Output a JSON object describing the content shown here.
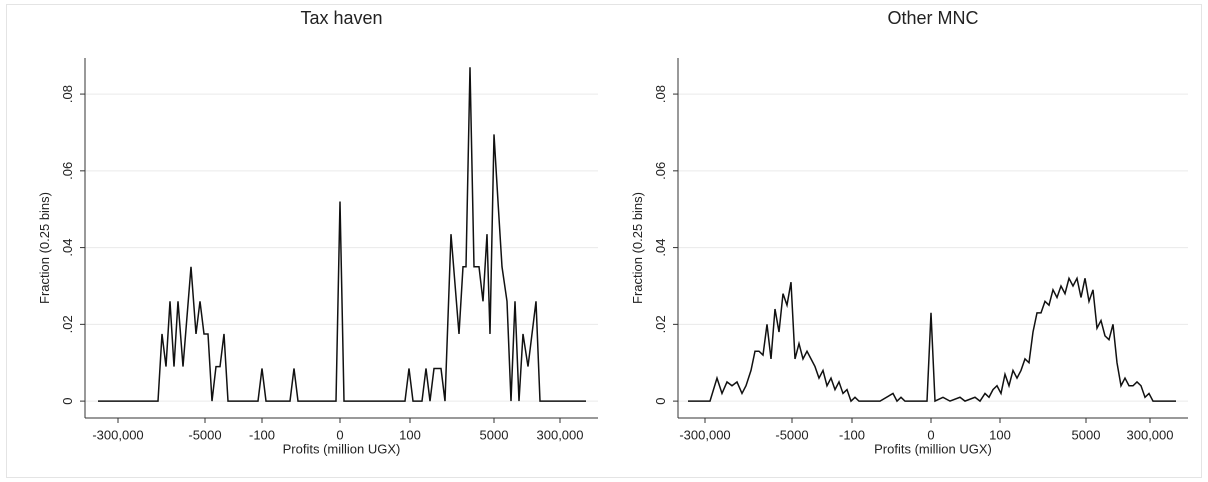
{
  "chart_data": [
    {
      "type": "line",
      "title": "Tax haven",
      "xlabel": "Profits (million UGX)",
      "ylabel": "Fraction (0.25 bins)",
      "color": "#111111",
      "grid": true,
      "xlim": [
        -63.75,
        64.5
      ],
      "ylim": [
        -0.0044,
        0.0894
      ],
      "xticks": [
        {
          "value": -55.5,
          "label": "-300,000"
        },
        {
          "value": -33.75,
          "label": "-5000"
        },
        {
          "value": -19.5,
          "label": "-100"
        },
        0,
        {
          "value": 17.5,
          "label": "100"
        },
        {
          "value": 38.5,
          "label": "5000"
        },
        {
          "value": 55,
          "label": "300,000"
        }
      ],
      "yticks": [
        0,
        {
          "value": 0.02,
          "label": ".02"
        },
        {
          "value": 0.04,
          "label": ".04"
        },
        {
          "value": 0.06,
          "label": ".06"
        },
        {
          "value": 0.08,
          "label": ".08"
        }
      ],
      "x": [
        -60.5,
        -45.5,
        -44.5,
        -43.5,
        -42.5,
        -41.5,
        -40.5,
        -39.25,
        -37.25,
        -36,
        -35,
        -34,
        -33,
        -32,
        -31,
        -30,
        -29,
        -28,
        -20.5,
        -19.5,
        -18.5,
        -12.5,
        -11.5,
        -10.5,
        -1,
        0,
        1,
        16.25,
        17.25,
        18.25,
        20.5,
        21.5,
        22.5,
        23.5,
        25.25,
        26.25,
        27.75,
        29.75,
        30.75,
        31.5,
        32.5,
        33.5,
        34.75,
        35.75,
        36.75,
        37.5,
        38.5,
        39.5,
        40.5,
        41.75,
        42.75,
        43.75,
        44.75,
        45.75,
        47,
        48,
        49,
        50,
        61.5
      ],
      "values": [
        0,
        0,
        0.0175,
        0.009,
        0.026,
        0.009,
        0.026,
        0.009,
        0.035,
        0.0175,
        0.026,
        0.0175,
        0.0175,
        0,
        0.009,
        0.009,
        0.0175,
        0,
        0,
        0.0085,
        0,
        0,
        0.0085,
        0,
        0,
        0.052,
        0,
        0,
        0.0085,
        0,
        0,
        0.0085,
        0,
        0.0085,
        0.0085,
        0,
        0.0435,
        0.0175,
        0.035,
        0.035,
        0.087,
        0.035,
        0.035,
        0.026,
        0.0435,
        0.0175,
        0.0695,
        0.052,
        0.035,
        0.026,
        0,
        0.026,
        0,
        0.0175,
        0.009,
        0.0175,
        0.026,
        0,
        0
      ]
    },
    {
      "type": "line",
      "title": "Other MNC",
      "xlabel": "Profits (million UGX)",
      "ylabel": "Fraction (0.25 bins)",
      "color": "#111111",
      "grid": true,
      "xlim": [
        -63.25,
        64.25
      ],
      "ylim": [
        -0.0044,
        0.0894
      ],
      "xticks": [
        {
          "value": -56.5,
          "label": "-300,000"
        },
        {
          "value": -34.75,
          "label": "-5000"
        },
        {
          "value": -19.75,
          "label": "-100"
        },
        0,
        {
          "value": 17.25,
          "label": "100"
        },
        {
          "value": 38.75,
          "label": "5000"
        },
        {
          "value": 54.75,
          "label": "300,000"
        }
      ],
      "yticks": [
        0,
        {
          "value": 0.02,
          "label": ".02"
        },
        {
          "value": 0.04,
          "label": ".04"
        },
        {
          "value": 0.06,
          "label": ".06"
        },
        {
          "value": 0.08,
          "label": ".08"
        }
      ],
      "x": [
        -60.75,
        -55.25,
        -53.5,
        -52.25,
        -51,
        -49.75,
        -48.5,
        -47.25,
        -46.25,
        -45,
        -44,
        -43,
        -42,
        -41,
        -40,
        -39,
        -38,
        -37,
        -36,
        -35,
        -34,
        -33,
        -32,
        -31,
        -30,
        -29,
        -28,
        -27,
        -26,
        -25,
        -24,
        -23,
        -22,
        -21,
        -20,
        -19,
        -18,
        -12.75,
        -9.5,
        -8.5,
        -7.5,
        -6.5,
        -1,
        0,
        1,
        3,
        4.75,
        7.25,
        8.5,
        11,
        12.25,
        13.5,
        14.5,
        15.5,
        16.5,
        17.5,
        18.5,
        19.5,
        20.5,
        21.5,
        22.5,
        23.5,
        24.5,
        25.5,
        26.5,
        27.5,
        28.5,
        29.5,
        30.5,
        31.5,
        32.5,
        33.5,
        34.5,
        35.5,
        36.5,
        37.5,
        38.5,
        39.5,
        40.5,
        41.5,
        42.5,
        43.5,
        44.5,
        45.5,
        46.5,
        47.5,
        48.5,
        49.5,
        50.5,
        51.5,
        52.5,
        53.5,
        54.5,
        55.5,
        61.25
      ],
      "values": [
        0,
        0,
        0.006,
        0.002,
        0.005,
        0.004,
        0.005,
        0.002,
        0.004,
        0.008,
        0.013,
        0.013,
        0.012,
        0.02,
        0.011,
        0.024,
        0.018,
        0.028,
        0.025,
        0.031,
        0.011,
        0.015,
        0.011,
        0.013,
        0.011,
        0.009,
        0.006,
        0.008,
        0.004,
        0.006,
        0.003,
        0.005,
        0.002,
        0.003,
        0,
        0.001,
        0,
        0,
        0.002,
        0,
        0.001,
        0,
        0,
        0.023,
        0,
        0.001,
        0,
        0.001,
        0,
        0.001,
        0,
        0.002,
        0.001,
        0.003,
        0.004,
        0.002,
        0.007,
        0.004,
        0.008,
        0.006,
        0.008,
        0.011,
        0.01,
        0.018,
        0.023,
        0.023,
        0.026,
        0.025,
        0.029,
        0.027,
        0.03,
        0.028,
        0.032,
        0.03,
        0.032,
        0.027,
        0.032,
        0.026,
        0.029,
        0.019,
        0.021,
        0.017,
        0.016,
        0.02,
        0.01,
        0.004,
        0.006,
        0.004,
        0.004,
        0.005,
        0.004,
        0.001,
        0.002,
        0,
        0
      ]
    }
  ]
}
